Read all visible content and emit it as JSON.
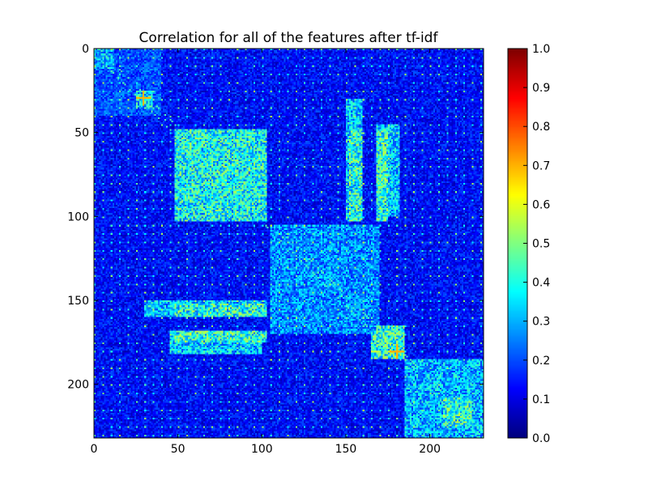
{
  "chart_data": {
    "type": "heatmap",
    "title": "Correlation for all of the features after tf-idf",
    "xlabel": "",
    "ylabel": "",
    "n_features": 232,
    "xlim": [
      0,
      232
    ],
    "ylim": [
      232,
      0
    ],
    "x_ticks": [
      0,
      50,
      100,
      150,
      200
    ],
    "x_tick_labels": [
      "0",
      "50",
      "100",
      "150",
      "200"
    ],
    "y_ticks": [
      0,
      50,
      100,
      150,
      200
    ],
    "y_tick_labels": [
      "0",
      "50",
      "100",
      "150",
      "200"
    ],
    "colormap": "jet",
    "colorbar": {
      "range": [
        0.0,
        1.0
      ],
      "ticks": [
        0.0,
        0.1,
        0.2,
        0.3,
        0.4,
        0.5,
        0.6,
        0.7,
        0.8,
        0.9,
        1.0
      ],
      "tick_labels": [
        "0.0",
        "0.1",
        "0.2",
        "0.3",
        "0.4",
        "0.5",
        "0.6",
        "0.7",
        "0.8",
        "0.9",
        "1.0"
      ]
    },
    "blocks": [
      {
        "rows": [
          0,
          12
        ],
        "cols": [
          0,
          12
        ],
        "mean": 0.3
      },
      {
        "rows": [
          0,
          40
        ],
        "cols": [
          0,
          40
        ],
        "mean": 0.2
      },
      {
        "rows": [
          25,
          35
        ],
        "cols": [
          25,
          35
        ],
        "mean": 0.35
      },
      {
        "rows": [
          48,
          103
        ],
        "cols": [
          48,
          103
        ],
        "mean": 0.38
      },
      {
        "rows": [
          48,
          103
        ],
        "cols": [
          152,
          160
        ],
        "mean": 0.4
      },
      {
        "rows": [
          48,
          103
        ],
        "cols": [
          168,
          175
        ],
        "mean": 0.4
      },
      {
        "rows": [
          105,
          170
        ],
        "cols": [
          105,
          170
        ],
        "mean": 0.26
      },
      {
        "rows": [
          150,
          160
        ],
        "cols": [
          30,
          103
        ],
        "mean": 0.32
      },
      {
        "rows": [
          168,
          182
        ],
        "cols": [
          45,
          100
        ],
        "mean": 0.32
      },
      {
        "rows": [
          168,
          185
        ],
        "cols": [
          165,
          185
        ],
        "mean": 0.4
      },
      {
        "rows": [
          185,
          232
        ],
        "cols": [
          185,
          232
        ],
        "mean": 0.3
      },
      {
        "rows": [
          208,
          225
        ],
        "cols": [
          208,
          225
        ],
        "mean": 0.4
      }
    ],
    "highlights": [
      {
        "row": 29,
        "col": 29,
        "value": 0.7
      },
      {
        "row": 180,
        "col": 180,
        "value": 0.7
      }
    ]
  }
}
